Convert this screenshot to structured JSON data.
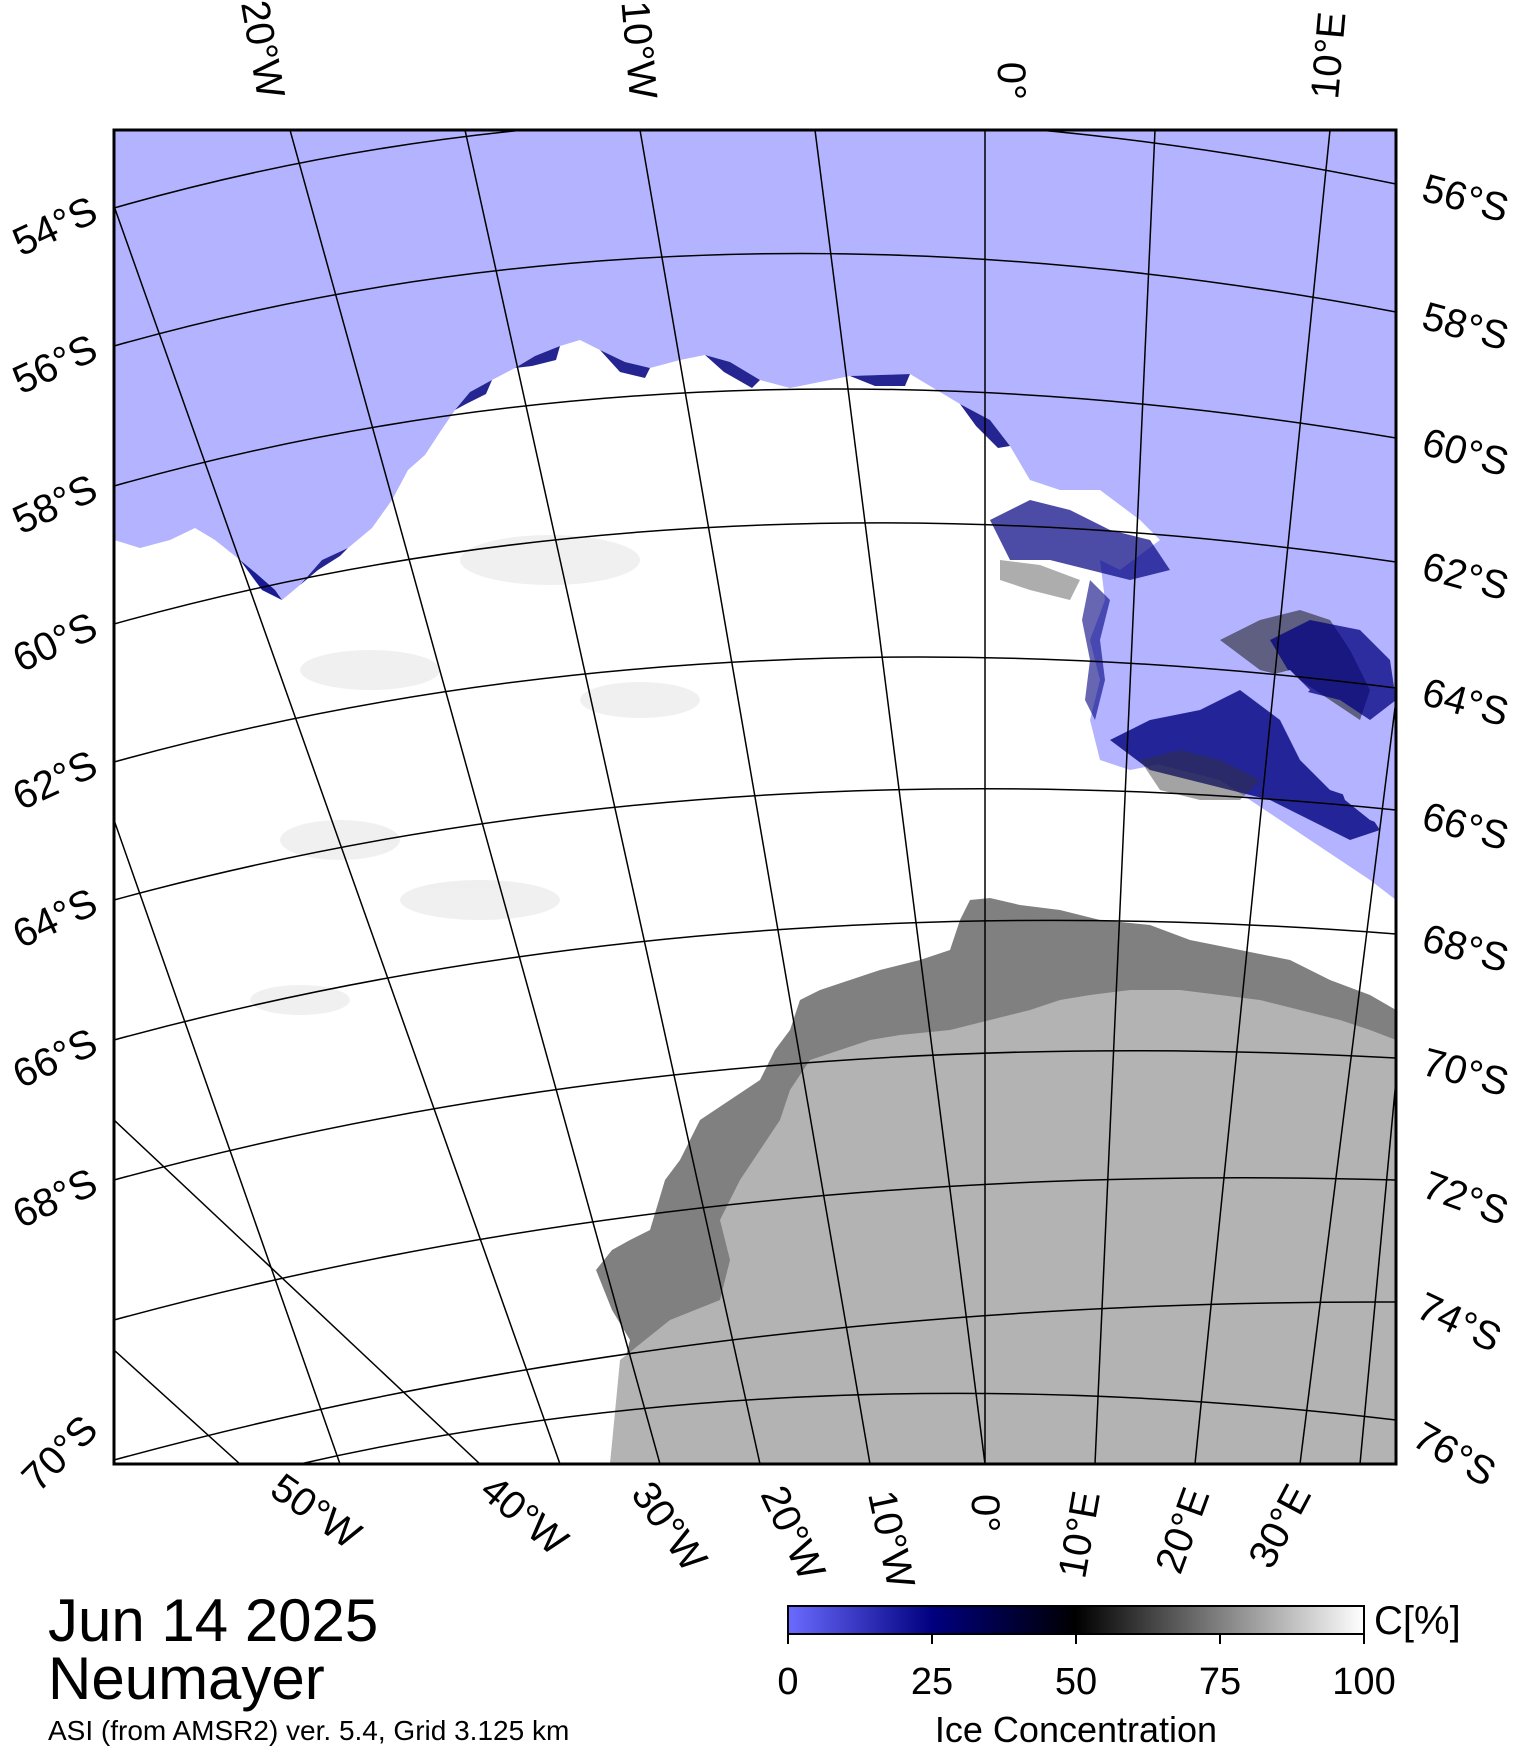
{
  "title": {
    "date": "Jun 14 2025",
    "station": "Neumayer",
    "product": "ASI (from AMSR2) ver. 5.4,  Grid 3.125 km"
  },
  "map": {
    "top_lon_labels": [
      "20°W",
      "10°W",
      "0°",
      "10°E"
    ],
    "bottom_lon_labels": [
      "50°W",
      "40°W",
      "30°W",
      "20°W",
      "10°W",
      "0°",
      "10°E",
      "20°E",
      "30°E"
    ],
    "left_lat_labels": [
      "54°S",
      "56°S",
      "58°S",
      "60°S",
      "62°S",
      "64°S",
      "66°S",
      "68°S",
      "70°S"
    ],
    "right_lat_labels": [
      "56°S",
      "58°S",
      "60°S",
      "62°S",
      "64°S",
      "66°S",
      "68°S",
      "70°S",
      "72°S",
      "74°S",
      "76°S"
    ],
    "colors": {
      "open_water": "#b3b3ff",
      "ice_full": "#ffffff",
      "land": "#b3b3b3",
      "ice_shelf": "#808080",
      "ice_edge": "#000080",
      "grid": "#000000"
    }
  },
  "colorbar": {
    "unit": "C[%]",
    "ticks": [
      "0",
      "25",
      "50",
      "75",
      "100"
    ],
    "label": "Ice Concentration",
    "stops": [
      "#6b6bff",
      "#000080",
      "#000000",
      "#808080",
      "#ffffff"
    ]
  }
}
